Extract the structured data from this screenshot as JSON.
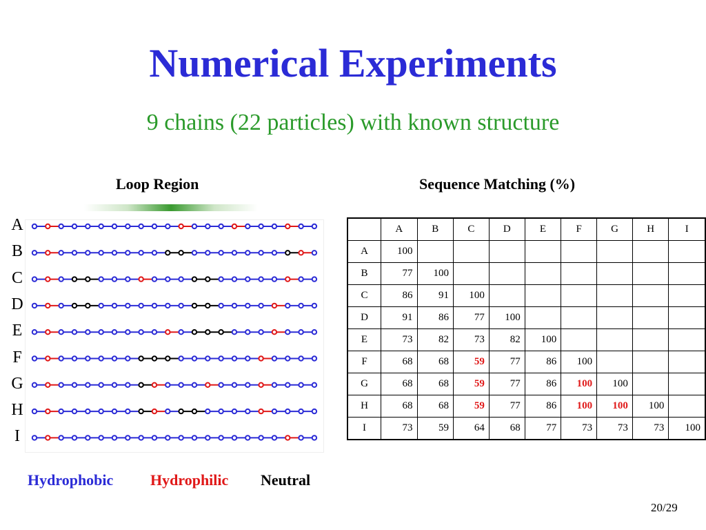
{
  "slide": {
    "title": "Numerical Experiments",
    "subtitle": "9 chains (22 particles) with known structure",
    "loop_heading": "Loop Region",
    "matrix_heading": "Sequence Matching (%)",
    "page_number": "20/29"
  },
  "colors": {
    "hydrophobic": "#2b2bd6",
    "hydrophilic": "#e01818",
    "neutral": "#000000"
  },
  "legend": [
    {
      "key": "hydrophobic",
      "label": "Hydrophobic"
    },
    {
      "key": "hydrophilic",
      "label": "Hydrophilic"
    },
    {
      "key": "neutral",
      "label": "Neutral"
    }
  ],
  "chains": [
    {
      "label": "A",
      "sequence": "BRBBBBBBBBBRBBBRBBBRBB"
    },
    {
      "label": "B",
      "sequence": "BRBBBBBBBBNNBBBBBBBNRB"
    },
    {
      "label": "C",
      "sequence": "BRBNNBBBRBBBNNBBBBBRBB"
    },
    {
      "label": "D",
      "sequence": "BRBNNBBBBBBBNNBBBBRBBB"
    },
    {
      "label": "E",
      "sequence": "BRBBBBBBBBRBNNNBBBRBBB"
    },
    {
      "label": "F",
      "sequence": "BRBBBBBBNNNBBBBBBRBBBB"
    },
    {
      "label": "G",
      "sequence": "BRBBBBBBNRBBBRBBBRBBBB"
    },
    {
      "label": "H",
      "sequence": "BRBBBBBBNRBNNBBBBRBBBB"
    },
    {
      "label": "I",
      "sequence": "BRBBBBBBBBBBBBBBBBBRBB"
    }
  ],
  "matrix": {
    "headers": [
      "A",
      "B",
      "C",
      "D",
      "E",
      "F",
      "G",
      "H",
      "I"
    ],
    "rows": [
      {
        "label": "A",
        "values": [
          "100"
        ]
      },
      {
        "label": "B",
        "values": [
          "77",
          "100"
        ]
      },
      {
        "label": "C",
        "values": [
          "86",
          "91",
          "100"
        ]
      },
      {
        "label": "D",
        "values": [
          "91",
          "86",
          "77",
          "100"
        ]
      },
      {
        "label": "E",
        "values": [
          "73",
          "82",
          "73",
          "82",
          "100"
        ]
      },
      {
        "label": "F",
        "values": [
          "68",
          "68",
          "59",
          "77",
          "86",
          "100"
        ]
      },
      {
        "label": "G",
        "values": [
          "68",
          "68",
          "59",
          "77",
          "86",
          "100",
          "100"
        ]
      },
      {
        "label": "H",
        "values": [
          "68",
          "68",
          "59",
          "77",
          "86",
          "100",
          "100",
          "100"
        ]
      },
      {
        "label": "I",
        "values": [
          "73",
          "59",
          "64",
          "68",
          "77",
          "73",
          "73",
          "73",
          "100"
        ]
      }
    ],
    "highlighted": [
      [
        5,
        2
      ],
      [
        6,
        2
      ],
      [
        6,
        5
      ],
      [
        7,
        2
      ],
      [
        7,
        5
      ],
      [
        7,
        6
      ]
    ]
  }
}
